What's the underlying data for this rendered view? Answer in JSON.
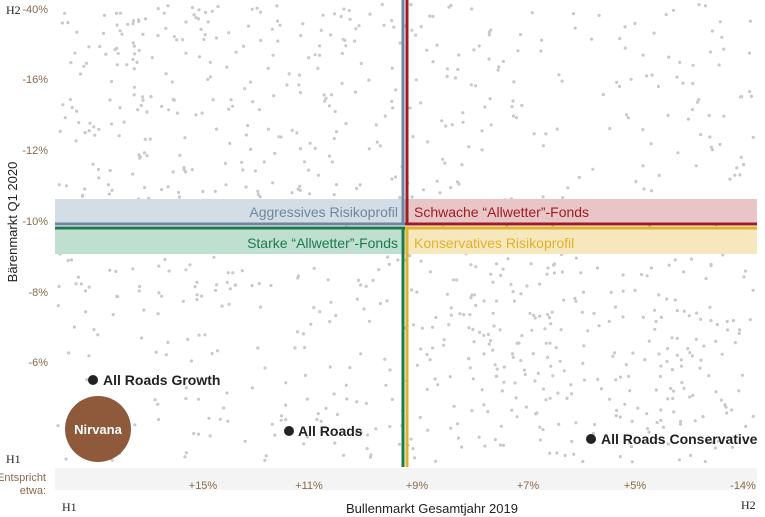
{
  "chart_data": {
    "type": "scatter",
    "xlabel": "Bullenmarkt Gesamtjahr 2019",
    "ylabel": "Bärenmarkt Q1 2020",
    "x_row_prefix": "Entspricht etwa:",
    "x_ticks": [
      "+15%",
      "+11%",
      "+9%",
      "+7%",
      "+5%",
      "-14%"
    ],
    "y_ticks": [
      "-40%",
      "-16%",
      "-12%",
      "-10%",
      "-8%",
      "-6%"
    ],
    "corner_labels": {
      "y_high": "H2",
      "y_low": "H1",
      "x_low": "H1",
      "x_high": "H2"
    },
    "dividers": {
      "x": "+9%",
      "y": "-10%"
    },
    "quadrant_labels": [
      {
        "text": "Aggressives Risikoprofil",
        "color": "#6f86a0",
        "band_color": "#d3dde5"
      },
      {
        "text": "Schwache “Allwetter”-Fonds",
        "color": "#a11b24",
        "band_color": "#e8c5c7"
      },
      {
        "text": "Starke “Allwetter”-Fonds",
        "color": "#1d7a4e",
        "band_color": "#bfe0d1"
      },
      {
        "text": "Konservatives Risikoprofil",
        "color": "#e2b12c",
        "band_color": "#f7e7bd"
      }
    ],
    "highlighted": [
      {
        "name": "All Roads Growth",
        "region": "upper-left"
      },
      {
        "name": "All Roads",
        "region": "lower-center-left"
      },
      {
        "name": "All Roads Conservative",
        "region": "lower-right"
      }
    ],
    "target": {
      "name": "Nirvana",
      "color": "#8e5a3b",
      "region": "bottom-left"
    },
    "background_points": {
      "count": 1000,
      "color": "#c9c9c9",
      "density": "clustered top-left and bottom-right"
    }
  }
}
